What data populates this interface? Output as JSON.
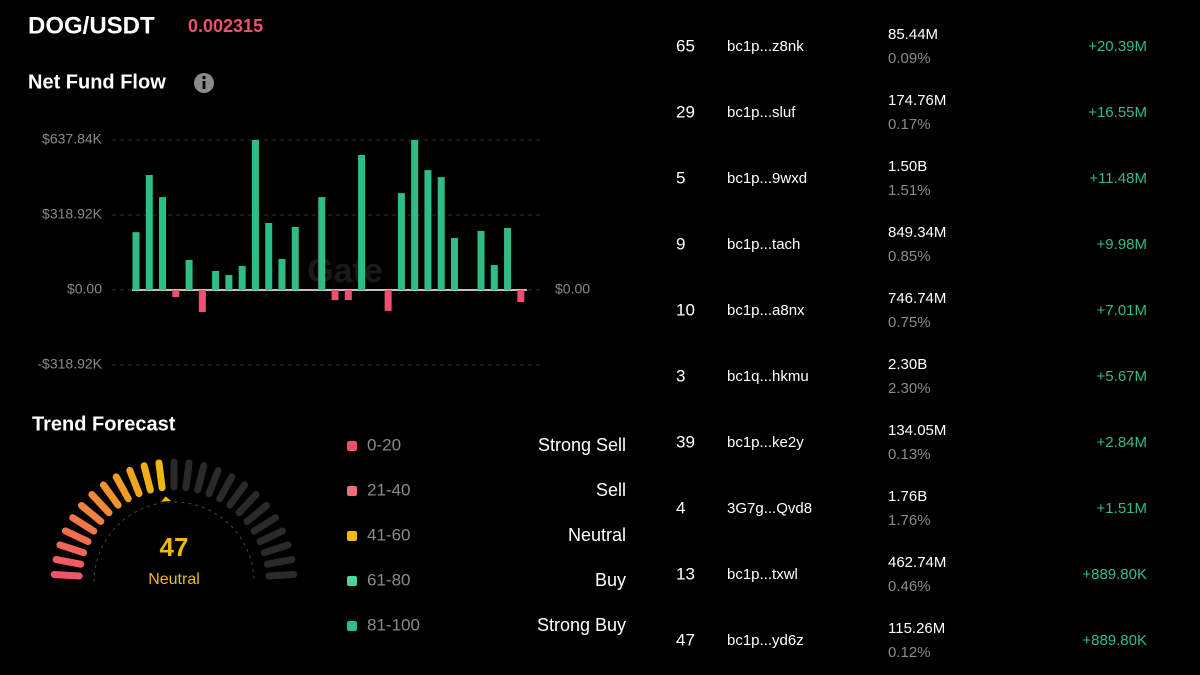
{
  "header": {
    "pair": "DOG/USDT",
    "price": "0.002315"
  },
  "chart_data": {
    "type": "bar",
    "title": "Net Fund Flow",
    "watermark": "Gate",
    "values": [
      246000,
      489000,
      395000,
      -30000,
      128000,
      -94000,
      81000,
      64000,
      102000,
      637840,
      285000,
      132000,
      268000,
      0,
      395000,
      -43000,
      -43000,
      574000,
      0,
      -89000,
      412000,
      637840,
      510000,
      480000,
      221000,
      0,
      251000,
      106000,
      264000,
      -51000
    ],
    "positive_color": "#2ebd85",
    "negative_color": "#f0506e",
    "ylim": [
      -318920,
      637840
    ],
    "yticks": [
      {
        "value": 637840,
        "label": "$637.84K"
      },
      {
        "value": 318920,
        "label": "$318.92K"
      },
      {
        "value": 0,
        "label": "$0.00"
      },
      {
        "value": -318920,
        "label": "-$318.92K"
      }
    ],
    "grid": true
  },
  "forecast": {
    "title": "Trend Forecast",
    "value": 47,
    "label": "Neutral",
    "legend": [
      {
        "range": "0-20",
        "label": "Strong Sell",
        "color": "#f0506e"
      },
      {
        "range": "21-40",
        "label": "Sell",
        "color": "#f26d7d"
      },
      {
        "range": "41-60",
        "label": "Neutral",
        "color": "#f0b90b"
      },
      {
        "range": "61-80",
        "label": "Buy",
        "color": "#4ed59a"
      },
      {
        "range": "81-100",
        "label": "Strong Buy",
        "color": "#2ebd85"
      }
    ]
  },
  "table": {
    "rows": [
      {
        "rank": "65",
        "address": "bc1p...z8nk",
        "amount": "85.44M",
        "share": "0.09%",
        "change": "+20.39M"
      },
      {
        "rank": "29",
        "address": "bc1p...sluf",
        "amount": "174.76M",
        "share": "0.17%",
        "change": "+16.55M"
      },
      {
        "rank": "5",
        "address": "bc1p...9wxd",
        "amount": "1.50B",
        "share": "1.51%",
        "change": "+11.48M"
      },
      {
        "rank": "9",
        "address": "bc1p...tach",
        "amount": "849.34M",
        "share": "0.85%",
        "change": "+9.98M"
      },
      {
        "rank": "10",
        "address": "bc1p...a8nx",
        "amount": "746.74M",
        "share": "0.75%",
        "change": "+7.01M"
      },
      {
        "rank": "3",
        "address": "bc1q...hkmu",
        "amount": "2.30B",
        "share": "2.30%",
        "change": "+5.67M"
      },
      {
        "rank": "39",
        "address": "bc1p...ke2y",
        "amount": "134.05M",
        "share": "0.13%",
        "change": "+2.84M"
      },
      {
        "rank": "4",
        "address": "3G7g...Qvd8",
        "amount": "1.76B",
        "share": "1.76%",
        "change": "+1.51M"
      },
      {
        "rank": "13",
        "address": "bc1p...txwl",
        "amount": "462.74M",
        "share": "0.46%",
        "change": "+889.80K"
      },
      {
        "rank": "47",
        "address": "bc1p...yd6z",
        "amount": "115.26M",
        "share": "0.12%",
        "change": "+889.80K"
      }
    ]
  }
}
